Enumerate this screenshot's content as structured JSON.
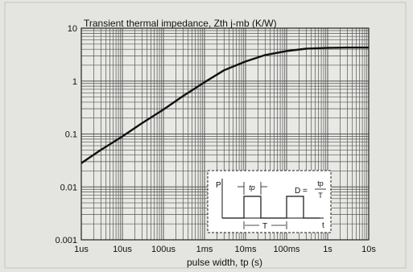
{
  "chart_data": {
    "type": "line",
    "title": "Transient thermal impedance, Zth j-mb (K/W)",
    "xlabel": "pulse width, tp (s)",
    "ylabel": "",
    "xscale": "log",
    "yscale": "log",
    "xlim": [
      1e-06,
      10
    ],
    "ylim": [
      0.001,
      10
    ],
    "grid": true,
    "x_tick_labels": [
      "1us",
      "10us",
      "100us",
      "1ms",
      "10ms",
      "100ms",
      "1s",
      "10s"
    ],
    "y_tick_labels": [
      "10",
      "1",
      "0.1",
      "0.01",
      "0.001"
    ],
    "series": [
      {
        "x": [
          1e-06,
          3e-06,
          1e-05,
          3e-05,
          0.0001,
          0.0003,
          0.001,
          0.003,
          0.01,
          0.03,
          0.1,
          0.3,
          1,
          3,
          10
        ],
        "y": [
          0.028,
          0.05,
          0.09,
          0.16,
          0.29,
          0.52,
          0.95,
          1.6,
          2.35,
          3.1,
          3.7,
          4.1,
          4.25,
          4.3,
          4.3
        ]
      }
    ],
    "inset": {
      "p_label": "P",
      "tp_label": "tp",
      "period_label": "T",
      "time_label": "t",
      "duty_lhs": "D =",
      "duty_num": "tp",
      "duty_den": "T"
    }
  },
  "colors": {
    "background": "#e4e4e0",
    "plot": "#e8e8e4",
    "grid": "#555555",
    "curve": "#111111",
    "inset": "#ffffff"
  }
}
